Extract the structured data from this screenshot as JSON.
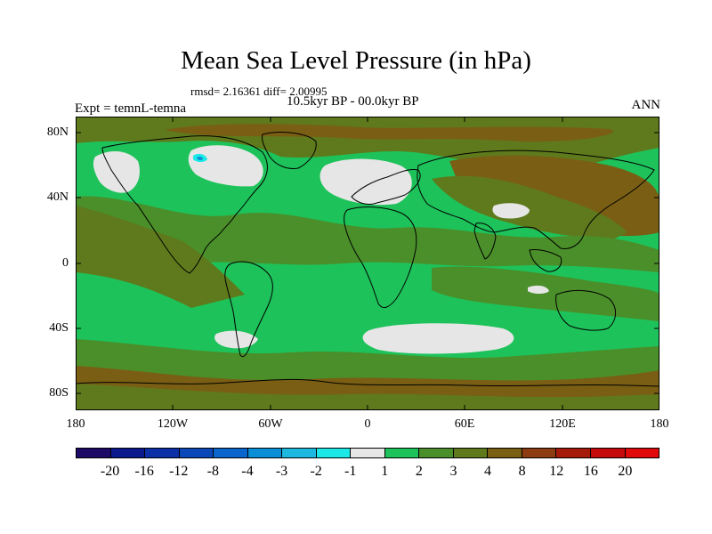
{
  "header": {
    "title": "Mean Sea Level Pressure (in hPa)",
    "stats": "rmsd= 2.16361 diff= 2.00995",
    "period": "10.5kyr BP - 00.0kyr BP",
    "experiment": "Expt = temnL-temna",
    "season": "ANN"
  },
  "axes": {
    "lat_ticks": [
      "80N",
      "40N",
      "0",
      "40S",
      "80S"
    ],
    "lon_ticks": [
      "180",
      "120W",
      "60W",
      "0",
      "60E",
      "120E",
      "180"
    ]
  },
  "colorbar": {
    "labels": [
      "-20",
      "-16",
      "-12",
      "-8",
      "-4",
      "-3",
      "-2",
      "-1",
      "1",
      "2",
      "3",
      "4",
      "8",
      "12",
      "16",
      "20"
    ],
    "colors": [
      "#1c0a66",
      "#0a1a8c",
      "#0a2fa6",
      "#0a47b8",
      "#0a66cc",
      "#0a8ed6",
      "#1cb8e0",
      "#1ce8e8",
      "#e6e6e6",
      "#1ec25a",
      "#4a8f2a",
      "#5e7a1c",
      "#7a5e14",
      "#8c3c0f",
      "#a61a0a",
      "#c40a0a",
      "#e00a0a"
    ]
  },
  "map_colors": {
    "white": "#e6e6e6",
    "green": "#1ec25a",
    "dark_green": "#4a8f2a",
    "olive": "#5e7a1c",
    "brown": "#7a5e14",
    "cyan": "#1ce8e8",
    "blue": "#0a8ed6"
  }
}
